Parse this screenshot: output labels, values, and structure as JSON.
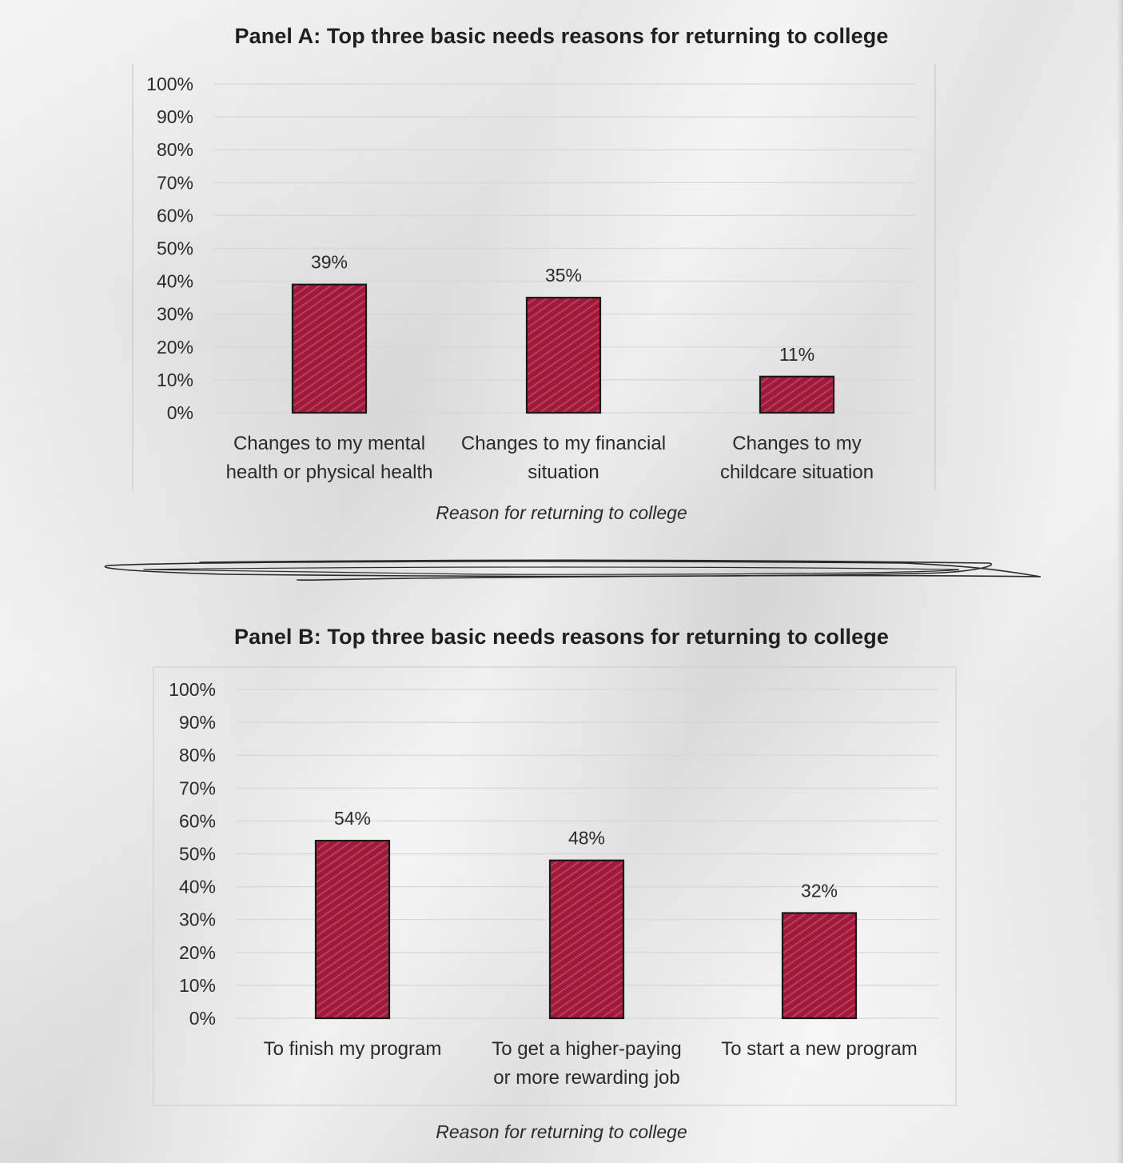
{
  "colors": {
    "bar": "#a61c3c",
    "bar_outline": "#1a1a1a",
    "grid": "#d6d6d6",
    "text": "#2a2a2a"
  },
  "chart_data": [
    {
      "type": "bar",
      "title": "Panel A: Top three basic needs reasons for returning to college",
      "xlabel": "Reason for returning to college",
      "ylabel": "",
      "ylim": [
        0,
        100
      ],
      "yticks": [
        "0%",
        "10%",
        "20%",
        "30%",
        "40%",
        "50%",
        "60%",
        "70%",
        "80%",
        "90%",
        "100%"
      ],
      "categories": [
        [
          "Changes to my mental",
          "health or physical health"
        ],
        [
          "Changes to my financial",
          "situation"
        ],
        [
          "Changes to my",
          "childcare situation"
        ]
      ],
      "values": [
        39,
        35,
        11
      ],
      "data_labels": [
        "39%",
        "35%",
        "11%"
      ],
      "grid": true
    },
    {
      "type": "bar",
      "title": "Panel B: Top three basic needs reasons for returning to college",
      "xlabel": "Reason for returning to college",
      "ylabel": "",
      "ylim": [
        0,
        100
      ],
      "yticks": [
        "0%",
        "10%",
        "20%",
        "30%",
        "40%",
        "50%",
        "60%",
        "70%",
        "80%",
        "90%",
        "100%"
      ],
      "categories": [
        [
          "To finish my program"
        ],
        [
          "To get a higher-paying",
          "or more rewarding job"
        ],
        [
          "To start a new program"
        ]
      ],
      "values": [
        54,
        48,
        32
      ],
      "data_labels": [
        "54%",
        "48%",
        "32%"
      ],
      "grid": true
    }
  ]
}
